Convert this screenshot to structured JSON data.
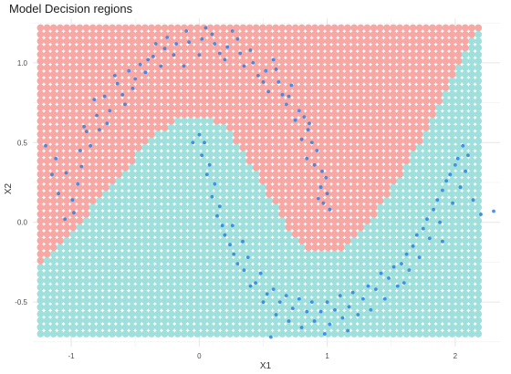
{
  "chart_data": {
    "type": "scatter",
    "title": "Model Decision regions",
    "xlabel": "X1",
    "ylabel": "X2",
    "xlim": [
      -1.3,
      2.35
    ],
    "ylim": [
      -0.78,
      1.28
    ],
    "x_ticks": [
      -1,
      0,
      1,
      2
    ],
    "x_tick_labels": [
      "-1",
      "0",
      "1",
      "2"
    ],
    "y_ticks": [
      -0.5,
      0.0,
      0.5,
      1.0
    ],
    "y_tick_labels": [
      "-0.5",
      "0.0",
      "0.5",
      "1.0"
    ],
    "grid": true,
    "legend": "none",
    "colors": {
      "region_a": "#f8a8a4",
      "region_b": "#9fe0dc",
      "points": "#2f7fe3"
    },
    "decision_region": {
      "grid_x_range": [
        -1.24,
        2.18
      ],
      "grid_y_range": [
        -0.7,
        1.22
      ],
      "boundary": [
        {
          "x": -1.24,
          "y": -0.28
        },
        {
          "x": -1.0,
          "y": -0.06
        },
        {
          "x": -0.7,
          "y": 0.22
        },
        {
          "x": -0.4,
          "y": 0.5
        },
        {
          "x": -0.2,
          "y": 0.64
        },
        {
          "x": 0.0,
          "y": 0.66
        },
        {
          "x": 0.2,
          "y": 0.62
        },
        {
          "x": 0.45,
          "y": 0.3
        },
        {
          "x": 0.7,
          "y": -0.05
        },
        {
          "x": 0.85,
          "y": -0.17
        },
        {
          "x": 1.1,
          "y": -0.17
        },
        {
          "x": 1.35,
          "y": 0.02
        },
        {
          "x": 1.65,
          "y": 0.4
        },
        {
          "x": 1.95,
          "y": 0.85
        },
        {
          "x": 2.18,
          "y": 1.22
        }
      ]
    },
    "series": [
      {
        "values": [
          [
            -0.98,
            0.06
          ],
          [
            -1.04,
            0.31
          ],
          [
            -0.93,
            0.45
          ],
          [
            -0.88,
            0.57
          ],
          [
            -0.8,
            0.67
          ],
          [
            -0.74,
            0.79
          ],
          [
            -0.64,
            0.87
          ],
          [
            -0.55,
            0.95
          ],
          [
            -0.46,
            0.99
          ],
          [
            -0.36,
            1.04
          ],
          [
            -0.27,
            1.09
          ],
          [
            -0.18,
            1.12
          ],
          [
            -0.08,
            1.13
          ],
          [
            0.02,
            1.15
          ],
          [
            0.12,
            1.12
          ],
          [
            0.22,
            1.1
          ],
          [
            0.32,
            1.06
          ],
          [
            0.42,
            1.0
          ],
          [
            0.52,
            0.95
          ],
          [
            0.62,
            0.88
          ],
          [
            0.7,
            0.79
          ],
          [
            0.78,
            0.7
          ],
          [
            0.85,
            0.58
          ],
          [
            0.92,
            0.45
          ],
          [
            0.96,
            0.32
          ],
          [
            1.0,
            0.18
          ],
          [
            1.02,
            0.08
          ],
          [
            -1.15,
            0.3
          ],
          [
            -1.1,
            0.18
          ],
          [
            -0.99,
            0.14
          ],
          [
            -0.9,
            0.6
          ],
          [
            -0.85,
            0.48
          ],
          [
            -0.7,
            0.7
          ],
          [
            -0.6,
            0.8
          ],
          [
            -0.5,
            0.9
          ],
          [
            -0.4,
            1.02
          ],
          [
            -0.3,
            0.98
          ],
          [
            -0.2,
            1.05
          ],
          [
            -0.1,
            1.2
          ],
          [
            0.0,
            1.05
          ],
          [
            0.1,
            1.18
          ],
          [
            0.2,
            1.02
          ],
          [
            0.3,
            1.15
          ],
          [
            0.4,
            1.08
          ],
          [
            0.5,
            0.88
          ],
          [
            0.6,
            0.96
          ],
          [
            0.68,
            0.74
          ],
          [
            0.75,
            0.64
          ],
          [
            0.82,
            0.66
          ],
          [
            0.88,
            0.5
          ],
          [
            0.9,
            0.36
          ],
          [
            0.95,
            0.22
          ],
          [
            0.97,
            0.12
          ],
          [
            -1.2,
            0.48
          ],
          [
            -0.95,
            0.24
          ],
          [
            -0.78,
            0.58
          ],
          [
            -0.66,
            0.92
          ],
          [
            -0.52,
            0.84
          ],
          [
            -0.42,
            0.94
          ],
          [
            -0.25,
            1.16
          ],
          [
            0.05,
            1.22
          ],
          [
            0.35,
            0.98
          ],
          [
            0.58,
            1.02
          ],
          [
            0.72,
            0.86
          ],
          [
            0.84,
            0.4
          ],
          [
            0.99,
            0.28
          ],
          [
            -1.05,
            0.02
          ],
          [
            -0.92,
            0.35
          ],
          [
            -0.82,
            0.77
          ],
          [
            -0.58,
            0.74
          ],
          [
            -0.34,
            1.12
          ],
          [
            -0.12,
            0.98
          ],
          [
            0.16,
            1.06
          ],
          [
            0.46,
            0.92
          ],
          [
            0.65,
            0.8
          ],
          [
            0.8,
            0.52
          ],
          [
            0.93,
            0.15
          ],
          [
            -1.12,
            0.4
          ],
          [
            -0.72,
            0.62
          ],
          [
            0.26,
            1.2
          ],
          [
            0.54,
            0.82
          ],
          [
            0.86,
            0.62
          ]
        ]
      },
      {
        "values": [
          [
            0.0,
            0.55
          ],
          [
            0.02,
            0.42
          ],
          [
            0.06,
            0.3
          ],
          [
            0.1,
            0.16
          ],
          [
            0.14,
            0.04
          ],
          [
            0.2,
            -0.08
          ],
          [
            0.27,
            -0.2
          ],
          [
            0.35,
            -0.3
          ],
          [
            0.44,
            -0.38
          ],
          [
            0.53,
            -0.45
          ],
          [
            0.63,
            -0.5
          ],
          [
            0.73,
            -0.54
          ],
          [
            0.84,
            -0.56
          ],
          [
            0.95,
            -0.56
          ],
          [
            1.06,
            -0.55
          ],
          [
            1.17,
            -0.53
          ],
          [
            1.28,
            -0.48
          ],
          [
            1.38,
            -0.42
          ],
          [
            1.48,
            -0.35
          ],
          [
            1.58,
            -0.26
          ],
          [
            1.67,
            -0.15
          ],
          [
            1.75,
            -0.04
          ],
          [
            1.83,
            0.08
          ],
          [
            1.9,
            0.2
          ],
          [
            1.96,
            0.3
          ],
          [
            2.02,
            0.4
          ],
          [
            2.06,
            0.48
          ],
          [
            -0.05,
            0.5
          ],
          [
            0.04,
            0.5
          ],
          [
            0.08,
            0.36
          ],
          [
            0.12,
            0.24
          ],
          [
            0.16,
            0.1
          ],
          [
            0.18,
            -0.02
          ],
          [
            0.24,
            -0.14
          ],
          [
            0.3,
            -0.26
          ],
          [
            0.38,
            -0.22
          ],
          [
            0.4,
            -0.4
          ],
          [
            0.48,
            -0.32
          ],
          [
            0.5,
            -0.5
          ],
          [
            0.58,
            -0.42
          ],
          [
            0.6,
            -0.58
          ],
          [
            0.68,
            -0.46
          ],
          [
            0.7,
            -0.62
          ],
          [
            0.78,
            -0.48
          ],
          [
            0.8,
            -0.66
          ],
          [
            0.88,
            -0.5
          ],
          [
            0.9,
            -0.62
          ],
          [
            1.0,
            -0.5
          ],
          [
            1.02,
            -0.64
          ],
          [
            1.1,
            -0.46
          ],
          [
            1.12,
            -0.6
          ],
          [
            1.2,
            -0.44
          ],
          [
            1.24,
            -0.58
          ],
          [
            1.32,
            -0.4
          ],
          [
            1.34,
            -0.55
          ],
          [
            1.42,
            -0.32
          ],
          [
            1.45,
            -0.48
          ],
          [
            1.52,
            -0.28
          ],
          [
            1.55,
            -0.4
          ],
          [
            1.62,
            -0.2
          ],
          [
            1.64,
            -0.3
          ],
          [
            1.7,
            -0.08
          ],
          [
            1.72,
            -0.22
          ],
          [
            1.78,
            0.02
          ],
          [
            1.8,
            -0.1
          ],
          [
            1.86,
            0.14
          ],
          [
            1.88,
            0.0
          ],
          [
            1.93,
            0.26
          ],
          [
            1.98,
            0.12
          ],
          [
            2.0,
            0.36
          ],
          [
            2.04,
            0.22
          ],
          [
            2.08,
            0.32
          ],
          [
            2.1,
            0.42
          ],
          [
            2.14,
            0.14
          ],
          [
            2.2,
            0.05
          ],
          [
            2.3,
            0.07
          ],
          [
            0.56,
            -0.72
          ],
          [
            0.98,
            -0.7
          ],
          [
            1.16,
            -0.68
          ],
          [
            0.26,
            -0.02
          ],
          [
            0.34,
            -0.12
          ],
          [
            1.6,
            -0.38
          ],
          [
            1.9,
            -0.12
          ]
        ]
      }
    ]
  }
}
